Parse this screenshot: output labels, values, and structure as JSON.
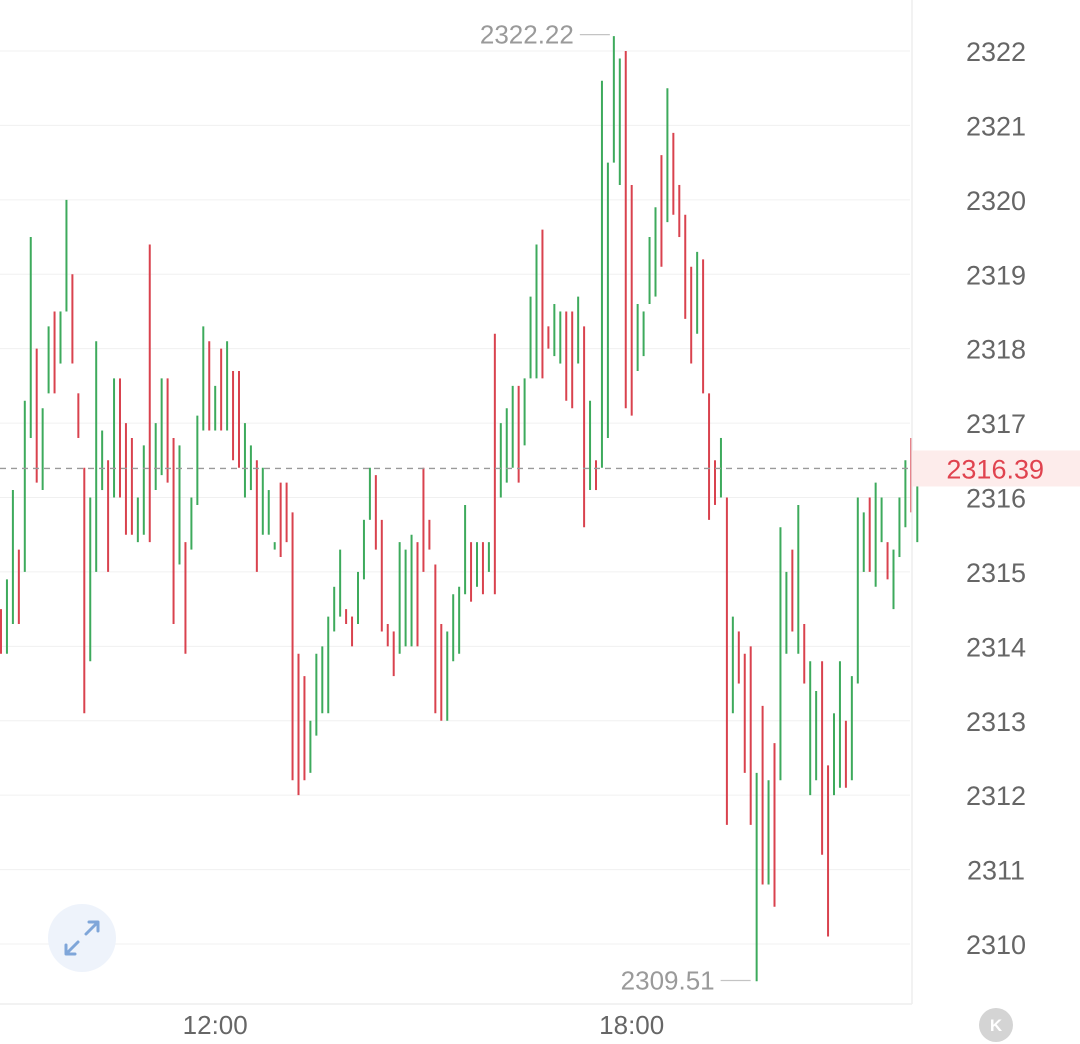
{
  "chart_data": {
    "type": "ohlc",
    "y_ticks": [
      "2310",
      "2311",
      "2312",
      "2313",
      "2314",
      "2315",
      "2316",
      "2317",
      "2318",
      "2319",
      "2320",
      "2321",
      "2322"
    ],
    "x_ticks": [
      {
        "label": "12:00",
        "index": 36
      },
      {
        "label": "18:00",
        "index": 106
      }
    ],
    "ylim": [
      2309.3,
      2322.5
    ],
    "grid": true,
    "current_price": 2316.39,
    "current_price_label": "2316.39",
    "max_label": "2322.22",
    "min_label": "2309.51",
    "up_color": "#3daa5c",
    "down_color": "#d9424e",
    "bars": [
      {
        "low": 2313.9,
        "high": 2314.5,
        "up": false
      },
      {
        "low": 2313.9,
        "high": 2314.9,
        "up": true
      },
      {
        "low": 2314.3,
        "high": 2316.1,
        "up": true
      },
      {
        "low": 2314.3,
        "high": 2315.3,
        "up": false
      },
      {
        "low": 2315.0,
        "high": 2317.3,
        "up": true
      },
      {
        "low": 2316.8,
        "high": 2319.5,
        "up": true
      },
      {
        "low": 2316.2,
        "high": 2318.0,
        "up": false
      },
      {
        "low": 2316.1,
        "high": 2317.2,
        "up": true
      },
      {
        "low": 2317.4,
        "high": 2318.3,
        "up": true
      },
      {
        "low": 2317.4,
        "high": 2318.5,
        "up": false
      },
      {
        "low": 2317.8,
        "high": 2318.5,
        "up": true
      },
      {
        "low": 2318.5,
        "high": 2320.0,
        "up": true
      },
      {
        "low": 2317.8,
        "high": 2319.0,
        "up": false
      },
      {
        "low": 2316.8,
        "high": 2317.4,
        "up": false
      },
      {
        "low": 2313.1,
        "high": 2316.4,
        "up": false
      },
      {
        "low": 2313.8,
        "high": 2316.0,
        "up": true
      },
      {
        "low": 2315.0,
        "high": 2318.1,
        "up": true
      },
      {
        "low": 2316.1,
        "high": 2316.9,
        "up": true
      },
      {
        "low": 2315.0,
        "high": 2316.5,
        "up": false
      },
      {
        "low": 2316.0,
        "high": 2317.6,
        "up": true
      },
      {
        "low": 2316.0,
        "high": 2317.6,
        "up": false
      },
      {
        "low": 2315.5,
        "high": 2317.0,
        "up": false
      },
      {
        "low": 2315.5,
        "high": 2316.8,
        "up": false
      },
      {
        "low": 2315.4,
        "high": 2316.0,
        "up": true
      },
      {
        "low": 2315.5,
        "high": 2316.7,
        "up": true
      },
      {
        "low": 2315.4,
        "high": 2319.4,
        "up": false
      },
      {
        "low": 2316.1,
        "high": 2317.0,
        "up": true
      },
      {
        "low": 2316.3,
        "high": 2317.6,
        "up": true
      },
      {
        "low": 2316.2,
        "high": 2317.6,
        "up": false
      },
      {
        "low": 2314.3,
        "high": 2316.8,
        "up": false
      },
      {
        "low": 2315.1,
        "high": 2316.7,
        "up": true
      },
      {
        "low": 2313.9,
        "high": 2315.4,
        "up": false
      },
      {
        "low": 2315.3,
        "high": 2316.0,
        "up": true
      },
      {
        "low": 2315.9,
        "high": 2317.1,
        "up": true
      },
      {
        "low": 2316.9,
        "high": 2318.3,
        "up": true
      },
      {
        "low": 2316.9,
        "high": 2318.1,
        "up": false
      },
      {
        "low": 2316.9,
        "high": 2317.5,
        "up": true
      },
      {
        "low": 2316.9,
        "high": 2318.0,
        "up": false
      },
      {
        "low": 2316.9,
        "high": 2318.1,
        "up": true
      },
      {
        "low": 2316.5,
        "high": 2317.7,
        "up": false
      },
      {
        "low": 2316.4,
        "high": 2317.7,
        "up": false
      },
      {
        "low": 2316.0,
        "high": 2317.0,
        "up": true
      },
      {
        "low": 2316.1,
        "high": 2316.7,
        "up": true
      },
      {
        "low": 2315.0,
        "high": 2316.5,
        "up": false
      },
      {
        "low": 2315.5,
        "high": 2316.4,
        "up": true
      },
      {
        "low": 2315.5,
        "high": 2316.1,
        "up": true
      },
      {
        "low": 2315.3,
        "high": 2315.4,
        "up": true
      },
      {
        "low": 2315.2,
        "high": 2316.2,
        "up": false
      },
      {
        "low": 2315.4,
        "high": 2316.2,
        "up": false
      },
      {
        "low": 2312.2,
        "high": 2315.8,
        "up": false
      },
      {
        "low": 2312.0,
        "high": 2313.9,
        "up": false
      },
      {
        "low": 2312.2,
        "high": 2313.6,
        "up": false
      },
      {
        "low": 2312.3,
        "high": 2313.0,
        "up": true
      },
      {
        "low": 2312.8,
        "high": 2313.9,
        "up": true
      },
      {
        "low": 2313.1,
        "high": 2314.0,
        "up": true
      },
      {
        "low": 2313.1,
        "high": 2314.4,
        "up": true
      },
      {
        "low": 2314.2,
        "high": 2314.8,
        "up": true
      },
      {
        "low": 2314.4,
        "high": 2315.3,
        "up": true
      },
      {
        "low": 2314.3,
        "high": 2314.5,
        "up": false
      },
      {
        "low": 2314.0,
        "high": 2314.4,
        "up": false
      },
      {
        "low": 2314.3,
        "high": 2315.0,
        "up": true
      },
      {
        "low": 2314.9,
        "high": 2315.7,
        "up": true
      },
      {
        "low": 2315.7,
        "high": 2316.4,
        "up": true
      },
      {
        "low": 2315.3,
        "high": 2316.3,
        "up": false
      },
      {
        "low": 2314.2,
        "high": 2315.7,
        "up": false
      },
      {
        "low": 2314.0,
        "high": 2314.3,
        "up": false
      },
      {
        "low": 2313.6,
        "high": 2314.2,
        "up": false
      },
      {
        "low": 2313.9,
        "high": 2315.4,
        "up": true
      },
      {
        "low": 2314.0,
        "high": 2315.3,
        "up": true
      },
      {
        "low": 2314.0,
        "high": 2315.5,
        "up": true
      },
      {
        "low": 2314.0,
        "high": 2315.4,
        "up": false
      },
      {
        "low": 2315.0,
        "high": 2316.4,
        "up": false
      },
      {
        "low": 2315.3,
        "high": 2315.7,
        "up": false
      },
      {
        "low": 2313.1,
        "high": 2315.1,
        "up": false
      },
      {
        "low": 2313.0,
        "high": 2314.3,
        "up": false
      },
      {
        "low": 2313.0,
        "high": 2314.2,
        "up": true
      },
      {
        "low": 2313.8,
        "high": 2314.7,
        "up": true
      },
      {
        "low": 2313.9,
        "high": 2314.8,
        "up": true
      },
      {
        "low": 2314.7,
        "high": 2315.9,
        "up": true
      },
      {
        "low": 2314.6,
        "high": 2315.4,
        "up": false
      },
      {
        "low": 2314.8,
        "high": 2315.4,
        "up": true
      },
      {
        "low": 2314.7,
        "high": 2315.4,
        "up": false
      },
      {
        "low": 2315.0,
        "high": 2315.4,
        "up": true
      },
      {
        "low": 2314.7,
        "high": 2318.2,
        "up": false
      },
      {
        "low": 2316.0,
        "high": 2317.0,
        "up": true
      },
      {
        "low": 2316.2,
        "high": 2317.2,
        "up": true
      },
      {
        "low": 2316.4,
        "high": 2317.5,
        "up": true
      },
      {
        "low": 2316.2,
        "high": 2317.5,
        "up": false
      },
      {
        "low": 2316.7,
        "high": 2317.6,
        "up": true
      },
      {
        "low": 2317.6,
        "high": 2318.7,
        "up": true
      },
      {
        "low": 2317.6,
        "high": 2319.4,
        "up": true
      },
      {
        "low": 2317.6,
        "high": 2319.6,
        "up": false
      },
      {
        "low": 2318.0,
        "high": 2318.3,
        "up": false
      },
      {
        "low": 2317.9,
        "high": 2318.6,
        "up": true
      },
      {
        "low": 2317.8,
        "high": 2318.5,
        "up": true
      },
      {
        "low": 2317.3,
        "high": 2318.5,
        "up": false
      },
      {
        "low": 2317.2,
        "high": 2318.5,
        "up": false
      },
      {
        "low": 2317.8,
        "high": 2318.7,
        "up": true
      },
      {
        "low": 2315.6,
        "high": 2318.3,
        "up": false
      },
      {
        "low": 2316.1,
        "high": 2317.3,
        "up": true
      },
      {
        "low": 2316.1,
        "high": 2316.5,
        "up": false
      },
      {
        "low": 2316.4,
        "high": 2321.6,
        "up": true
      },
      {
        "low": 2316.8,
        "high": 2320.5,
        "up": true
      },
      {
        "low": 2320.5,
        "high": 2322.2,
        "up": true
      },
      {
        "low": 2320.2,
        "high": 2321.9,
        "up": true
      },
      {
        "low": 2317.2,
        "high": 2322.0,
        "up": false
      },
      {
        "low": 2317.1,
        "high": 2320.2,
        "up": false
      },
      {
        "low": 2317.7,
        "high": 2318.6,
        "up": true
      },
      {
        "low": 2317.9,
        "high": 2318.5,
        "up": true
      },
      {
        "low": 2318.6,
        "high": 2319.5,
        "up": true
      },
      {
        "low": 2318.7,
        "high": 2319.9,
        "up": true
      },
      {
        "low": 2319.1,
        "high": 2320.6,
        "up": false
      },
      {
        "low": 2319.7,
        "high": 2321.5,
        "up": true
      },
      {
        "low": 2319.8,
        "high": 2320.9,
        "up": false
      },
      {
        "low": 2319.5,
        "high": 2320.2,
        "up": false
      },
      {
        "low": 2318.4,
        "high": 2319.8,
        "up": false
      },
      {
        "low": 2317.8,
        "high": 2319.1,
        "up": false
      },
      {
        "low": 2318.2,
        "high": 2319.3,
        "up": true
      },
      {
        "low": 2317.4,
        "high": 2319.2,
        "up": false
      },
      {
        "low": 2315.7,
        "high": 2317.4,
        "up": false
      },
      {
        "low": 2315.9,
        "high": 2316.5,
        "up": false
      },
      {
        "low": 2316.0,
        "high": 2316.8,
        "up": true
      },
      {
        "low": 2311.6,
        "high": 2316.0,
        "up": false
      },
      {
        "low": 2313.1,
        "high": 2314.4,
        "up": true
      },
      {
        "low": 2313.5,
        "high": 2314.2,
        "up": false
      },
      {
        "low": 2312.3,
        "high": 2313.9,
        "up": false
      },
      {
        "low": 2311.6,
        "high": 2314.0,
        "up": false
      },
      {
        "low": 2309.5,
        "high": 2312.3,
        "up": true
      },
      {
        "low": 2310.8,
        "high": 2313.2,
        "up": false
      },
      {
        "low": 2310.8,
        "high": 2312.2,
        "up": true
      },
      {
        "low": 2310.5,
        "high": 2312.7,
        "up": false
      },
      {
        "low": 2312.2,
        "high": 2315.6,
        "up": true
      },
      {
        "low": 2313.9,
        "high": 2315.0,
        "up": true
      },
      {
        "low": 2314.2,
        "high": 2315.3,
        "up": false
      },
      {
        "low": 2313.9,
        "high": 2315.9,
        "up": true
      },
      {
        "low": 2313.5,
        "high": 2314.3,
        "up": false
      },
      {
        "low": 2312.0,
        "high": 2313.8,
        "up": true
      },
      {
        "low": 2312.2,
        "high": 2313.4,
        "up": true
      },
      {
        "low": 2311.2,
        "high": 2313.8,
        "up": false
      },
      {
        "low": 2310.1,
        "high": 2312.4,
        "up": false
      },
      {
        "low": 2312.0,
        "high": 2313.1,
        "up": true
      },
      {
        "low": 2312.1,
        "high": 2313.8,
        "up": true
      },
      {
        "low": 2312.1,
        "high": 2313.0,
        "up": false
      },
      {
        "low": 2312.2,
        "high": 2313.6,
        "up": true
      },
      {
        "low": 2313.5,
        "high": 2316.0,
        "up": true
      },
      {
        "low": 2315.0,
        "high": 2315.8,
        "up": true
      },
      {
        "low": 2315.0,
        "high": 2316.0,
        "up": false
      },
      {
        "low": 2314.8,
        "high": 2316.2,
        "up": true
      },
      {
        "low": 2315.4,
        "high": 2316.0,
        "up": true
      },
      {
        "low": 2314.9,
        "high": 2315.4,
        "up": false
      },
      {
        "low": 2314.5,
        "high": 2315.3,
        "up": true
      },
      {
        "low": 2315.2,
        "high": 2316.0,
        "up": true
      },
      {
        "low": 2315.6,
        "high": 2316.5,
        "up": true
      },
      {
        "low": 2315.8,
        "high": 2316.8,
        "up": false
      },
      {
        "low": 2315.4,
        "high": 2316.5,
        "up": true
      },
      {
        "low": 2316.2,
        "high": 2316.4,
        "up": false
      }
    ]
  }
}
